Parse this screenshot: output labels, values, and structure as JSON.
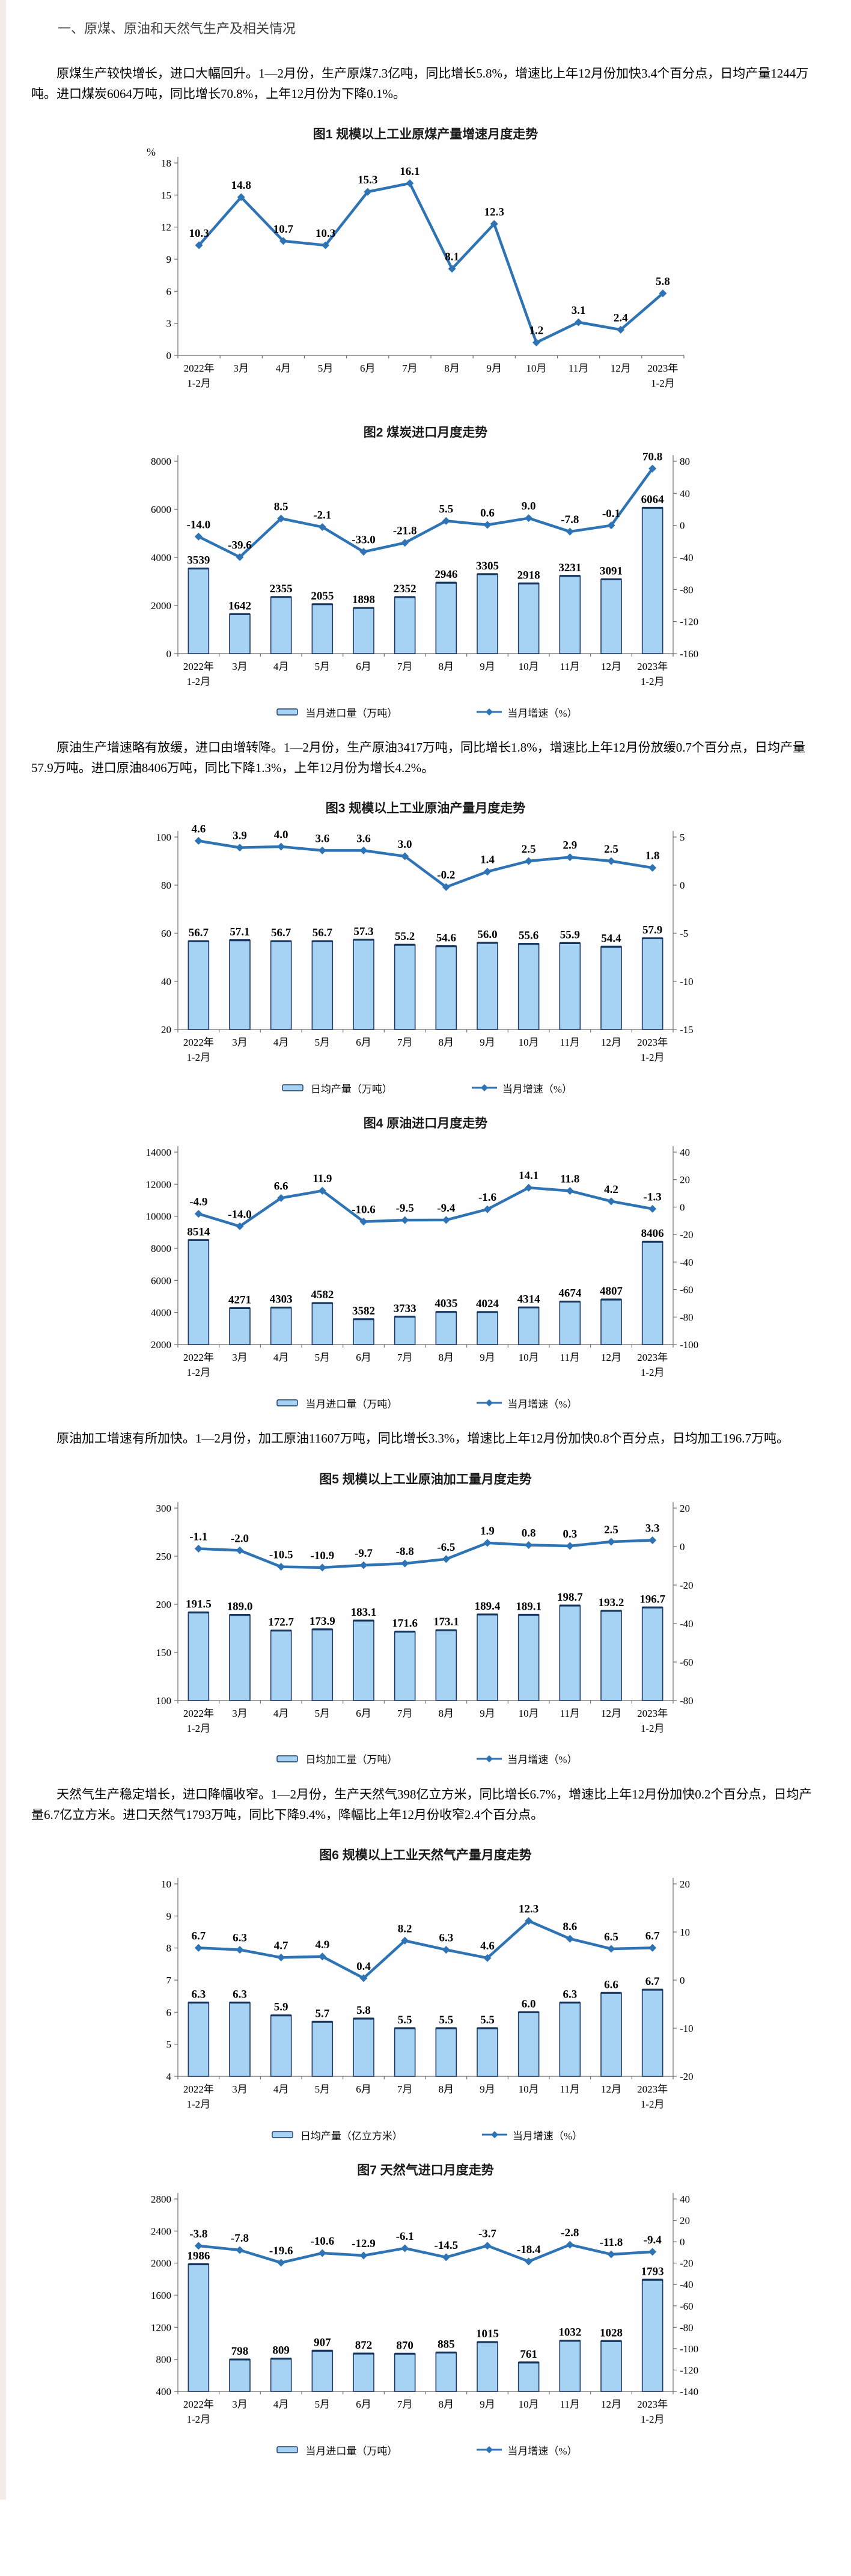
{
  "page": {
    "section_title": "一、原煤、原油和天然气生产及相关情况",
    "paragraphs": [
      "原煤生产较快增长，进口大幅回升。1—2月份，生产原煤7.3亿吨，同比增长5.8%，增速比上年12月份加快3.4个百分点，日均产量1244万吨。进口煤炭6064万吨，同比增长70.8%，上年12月份为下降0.1%。",
      "原油生产增速略有放缓，进口由增转降。1—2月份，生产原油3417万吨，同比增长1.8%，增速比上年12月份放缓0.7个百分点，日均产量57.9万吨。进口原油8406万吨，同比下降1.3%，上年12月份为增长4.2%。",
      "原油加工增速有所加快。1—2月份，加工原油11607万吨，同比增长3.3%，增速比上年12月份加快0.8个百分点，日均加工196.7万吨。",
      "天然气生产稳定增长，进口降幅收窄。1—2月份，生产天然气398亿立方米，同比增长6.7%，增速比上年12月份加快0.2个百分点，日均产量6.7亿立方米。进口天然气1793万吨，同比下降9.4%，降幅比上年12月份收窄2.4个百分点。"
    ]
  },
  "colors": {
    "bar_fill": "#A6D2F4",
    "bar_border": "#1F3864",
    "bar_cap": "#17375E",
    "line": "#2E74B5",
    "axis": "#6e6e6e"
  },
  "chart_data": [
    {
      "id": "fig1",
      "type": "line",
      "title": "图1 规模以上工业原煤产量增速月度走势",
      "unit_left": "%",
      "categories": [
        "2022年|1-2月",
        "3月",
        "4月",
        "5月",
        "6月",
        "7月",
        "8月",
        "9月",
        "10月",
        "11月",
        "12月",
        "2023年|1-2月"
      ],
      "left_axis": {
        "min": 0,
        "max": 18,
        "step": 3
      },
      "legend": false,
      "series": [
        {
          "name": "当月增速（%）",
          "type": "line",
          "axis": "left",
          "values": [
            10.3,
            14.8,
            10.7,
            10.3,
            15.3,
            16.1,
            8.1,
            12.3,
            1.2,
            3.1,
            2.4,
            5.8
          ],
          "labels": [
            "10.3",
            "14.8",
            "10.7",
            "10.3",
            "15.3",
            "16.1",
            "8.1",
            "12.3",
            "1.2",
            "3.1",
            "2.4",
            "5.8"
          ]
        }
      ]
    },
    {
      "id": "fig2",
      "type": "bar+line",
      "title": "图2 煤炭进口月度走势",
      "categories": [
        "2022年|1-2月",
        "3月",
        "4月",
        "5月",
        "6月",
        "7月",
        "8月",
        "9月",
        "10月",
        "11月",
        "12月",
        "2023年|1-2月"
      ],
      "left_axis": {
        "min": 0,
        "max": 8000,
        "step": 2000
      },
      "right_axis": {
        "min": -160,
        "max": 80,
        "step": 40
      },
      "legend": true,
      "series": [
        {
          "name": "当月进口量（万吨）",
          "type": "bar",
          "axis": "left",
          "values": [
            3539,
            1642,
            2355,
            2055,
            1898,
            2352,
            2946,
            3305,
            2918,
            3231,
            3091,
            6064
          ],
          "labels": [
            "3539",
            "1642",
            "2355",
            "2055",
            "1898",
            "2352",
            "2946",
            "3305",
            "2918",
            "3231",
            "3091",
            "6064"
          ]
        },
        {
          "name": "当月增速（%）",
          "type": "line",
          "axis": "right",
          "values": [
            -14.0,
            -39.6,
            8.5,
            -2.1,
            -33.0,
            -21.8,
            5.5,
            0.6,
            9.0,
            -7.8,
            -0.1,
            70.8
          ],
          "labels": [
            "-14.0",
            "-39.6",
            "8.5",
            "-2.1",
            "-33.0",
            "-21.8",
            "5.5",
            "0.6",
            "9.0",
            "-7.8",
            "-0.1",
            "70.8"
          ]
        }
      ]
    },
    {
      "id": "fig3",
      "type": "bar+line",
      "title": "图3 规模以上工业原油产量月度走势",
      "categories": [
        "2022年|1-2月",
        "3月",
        "4月",
        "5月",
        "6月",
        "7月",
        "8月",
        "9月",
        "10月",
        "11月",
        "12月",
        "2023年|1-2月"
      ],
      "left_axis": {
        "min": 20,
        "max": 100,
        "step": 20
      },
      "right_axis": {
        "min": -15,
        "max": 5,
        "step": 5
      },
      "legend": true,
      "series": [
        {
          "name": "日均产量（万吨）",
          "type": "bar",
          "axis": "left",
          "values": [
            56.7,
            57.1,
            56.7,
            56.7,
            57.3,
            55.2,
            54.6,
            56.0,
            55.6,
            55.9,
            54.4,
            57.9
          ],
          "labels": [
            "56.7",
            "57.1",
            "56.7",
            "56.7",
            "57.3",
            "55.2",
            "54.6",
            "56.0",
            "55.6",
            "55.9",
            "54.4",
            "57.9"
          ]
        },
        {
          "name": "当月增速（%）",
          "type": "line",
          "axis": "right",
          "values": [
            4.6,
            3.9,
            4.0,
            3.6,
            3.6,
            3.0,
            -0.2,
            1.4,
            2.5,
            2.9,
            2.5,
            1.8
          ],
          "labels": [
            "4.6",
            "3.9",
            "4.0",
            "3.6",
            "3.6",
            "3.0",
            "-0.2",
            "1.4",
            "2.5",
            "2.9",
            "2.5",
            "1.8"
          ]
        }
      ]
    },
    {
      "id": "fig4",
      "type": "bar+line",
      "title": "图4 原油进口月度走势",
      "categories": [
        "2022年|1-2月",
        "3月",
        "4月",
        "5月",
        "6月",
        "7月",
        "8月",
        "9月",
        "10月",
        "11月",
        "12月",
        "2023年|1-2月"
      ],
      "left_axis": {
        "min": 2000,
        "max": 14000,
        "step": 2000
      },
      "right_axis": {
        "min": -100,
        "max": 40,
        "step": 20
      },
      "legend": true,
      "series": [
        {
          "name": "当月进口量（万吨）",
          "type": "bar",
          "axis": "left",
          "values": [
            8514,
            4271,
            4303,
            4582,
            3582,
            3733,
            4035,
            4024,
            4314,
            4674,
            4807,
            8406
          ],
          "labels": [
            "8514",
            "4271",
            "4303",
            "4582",
            "3582",
            "3733",
            "4035",
            "4024",
            "4314",
            "4674",
            "4807",
            "8406"
          ]
        },
        {
          "name": "当月增速（%）",
          "type": "line",
          "axis": "right",
          "values": [
            -4.9,
            -14.0,
            6.6,
            11.9,
            -10.6,
            -9.5,
            -9.4,
            -1.6,
            14.1,
            11.8,
            4.2,
            -1.3
          ],
          "labels": [
            "-4.9",
            "-14.0",
            "6.6",
            "11.9",
            "-10.6",
            "-9.5",
            "-9.4",
            "-1.6",
            "14.1",
            "11.8",
            "4.2",
            "-1.3"
          ]
        }
      ]
    },
    {
      "id": "fig5",
      "type": "bar+line",
      "title": "图5 规模以上工业原油加工量月度走势",
      "categories": [
        "2022年|1-2月",
        "3月",
        "4月",
        "5月",
        "6月",
        "7月",
        "8月",
        "9月",
        "10月",
        "11月",
        "12月",
        "2023年|1-2月"
      ],
      "left_axis": {
        "min": 100,
        "max": 300,
        "step": 50
      },
      "right_axis": {
        "min": -80,
        "max": 20,
        "step": 20
      },
      "legend": true,
      "series": [
        {
          "name": "日均加工量（万吨）",
          "type": "bar",
          "axis": "left",
          "values": [
            191.5,
            189.0,
            172.7,
            173.9,
            183.1,
            171.6,
            173.1,
            189.4,
            189.1,
            198.7,
            193.2,
            196.7
          ],
          "labels": [
            "191.5",
            "189.0",
            "172.7",
            "173.9",
            "183.1",
            "171.6",
            "173.1",
            "189.4",
            "189.1",
            "198.7",
            "193.2",
            "196.7"
          ]
        },
        {
          "name": "当月增速（%）",
          "type": "line",
          "axis": "right",
          "values": [
            -1.1,
            -2.0,
            -10.5,
            -10.9,
            -9.7,
            -8.8,
            -6.5,
            1.9,
            0.8,
            0.3,
            2.5,
            3.3
          ],
          "labels": [
            "-1.1",
            "-2.0",
            "-10.5",
            "-10.9",
            "-9.7",
            "-8.8",
            "-6.5",
            "1.9",
            "0.8",
            "0.3",
            "2.5",
            "3.3"
          ]
        }
      ]
    },
    {
      "id": "fig6",
      "type": "bar+line",
      "title": "图6 规模以上工业天然气产量月度走势",
      "categories": [
        "2022年|1-2月",
        "3月",
        "4月",
        "5月",
        "6月",
        "7月",
        "8月",
        "9月",
        "10月",
        "11月",
        "12月",
        "2023年|1-2月"
      ],
      "left_axis": {
        "min": 4,
        "max": 10,
        "step": 1
      },
      "right_axis": {
        "min": -20,
        "max": 20,
        "step": 10
      },
      "legend": true,
      "series": [
        {
          "name": "日均产量（亿立方米）",
          "type": "bar",
          "axis": "left",
          "values": [
            6.3,
            6.3,
            5.9,
            5.7,
            5.8,
            5.5,
            5.5,
            5.5,
            6.0,
            6.3,
            6.6,
            6.7
          ],
          "labels": [
            "6.3",
            "6.3",
            "5.9",
            "5.7",
            "5.8",
            "5.5",
            "5.5",
            "5.5",
            "6.0",
            "6.3",
            "6.6",
            "6.7"
          ]
        },
        {
          "name": "当月增速（%）",
          "type": "line",
          "axis": "right",
          "values": [
            6.7,
            6.3,
            4.7,
            4.9,
            0.4,
            8.2,
            6.3,
            4.6,
            12.3,
            8.6,
            6.5,
            6.7
          ],
          "labels": [
            "6.7",
            "6.3",
            "4.7",
            "4.9",
            "0.4",
            "8.2",
            "6.3",
            "4.6",
            "12.3",
            "8.6",
            "6.5",
            "6.7"
          ]
        }
      ]
    },
    {
      "id": "fig7",
      "type": "bar+line",
      "title": "图7 天然气进口月度走势",
      "categories": [
        "2022年|1-2月",
        "3月",
        "4月",
        "5月",
        "6月",
        "7月",
        "8月",
        "9月",
        "10月",
        "11月",
        "12月",
        "2023年|1-2月"
      ],
      "left_axis": {
        "min": 400,
        "max": 2800,
        "step": 400
      },
      "right_axis": {
        "min": -140,
        "max": 40,
        "step": 20
      },
      "legend": true,
      "series": [
        {
          "name": "当月进口量（万吨）",
          "type": "bar",
          "axis": "left",
          "values": [
            1986,
            798,
            809,
            907,
            872,
            870,
            885,
            1015,
            761,
            1032,
            1028,
            1793
          ],
          "labels": [
            "1986",
            "798",
            "809",
            "907",
            "872",
            "870",
            "885",
            "1015",
            "761",
            "1032",
            "1028",
            "1793"
          ]
        },
        {
          "name": "当月增速（%）",
          "type": "line",
          "axis": "right",
          "values": [
            -3.8,
            -7.8,
            -19.6,
            -10.6,
            -12.9,
            -6.1,
            -14.5,
            -3.7,
            -18.4,
            -2.8,
            -11.8,
            -9.4
          ],
          "labels": [
            "-3.8",
            "-7.8",
            "-19.6",
            "-10.6",
            "-12.9",
            "-6.1",
            "-14.5",
            "-3.7",
            "-18.4",
            "-2.8",
            "-11.8",
            "-9.4"
          ]
        }
      ]
    }
  ]
}
